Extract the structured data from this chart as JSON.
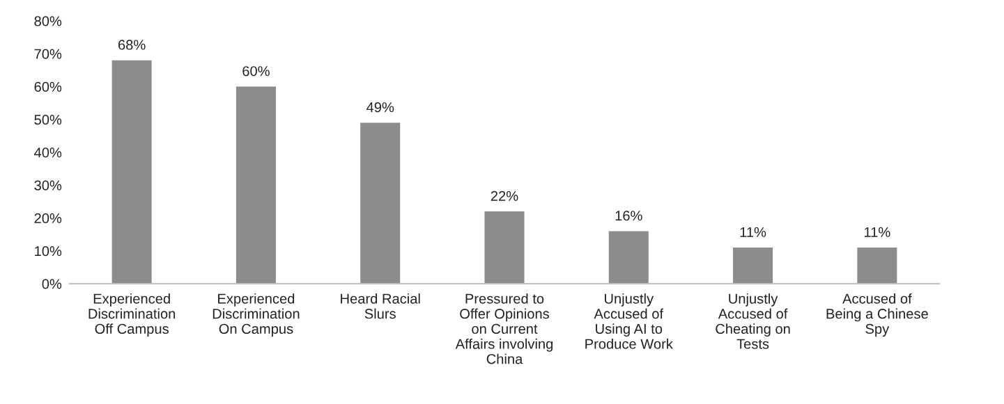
{
  "chart_data": {
    "type": "bar",
    "categories": [
      "Experienced\nDiscrimination\nOff Campus",
      "Experienced\nDiscrimination\nOn Campus",
      "Heard Racial\nSlurs",
      "Pressured to\nOffer Opinions\non Current\nAffairs involving\nChina",
      "Unjustly\nAccused of\nUsing AI to\nProduce Work",
      "Unjustly\nAccused of\nCheating on\nTests",
      "Accused of\nBeing a Chinese\nSpy"
    ],
    "values": [
      68,
      60,
      49,
      22,
      16,
      11,
      11
    ],
    "value_labels": [
      "68%",
      "60%",
      "49%",
      "22%",
      "16%",
      "11%",
      "11%"
    ],
    "color": "#8c8c8c",
    "ylim": [
      0,
      80
    ],
    "yticks": [
      {
        "value": 0,
        "label": "0%"
      },
      {
        "value": 10,
        "label": "10%"
      },
      {
        "value": 20,
        "label": "20%"
      },
      {
        "value": 30,
        "label": "30%"
      },
      {
        "value": 40,
        "label": "40%"
      },
      {
        "value": 50,
        "label": "50%"
      },
      {
        "value": 60,
        "label": "60%"
      },
      {
        "value": 70,
        "label": "70%"
      },
      {
        "value": 80,
        "label": "80%"
      }
    ],
    "grid": false,
    "legend": false
  }
}
